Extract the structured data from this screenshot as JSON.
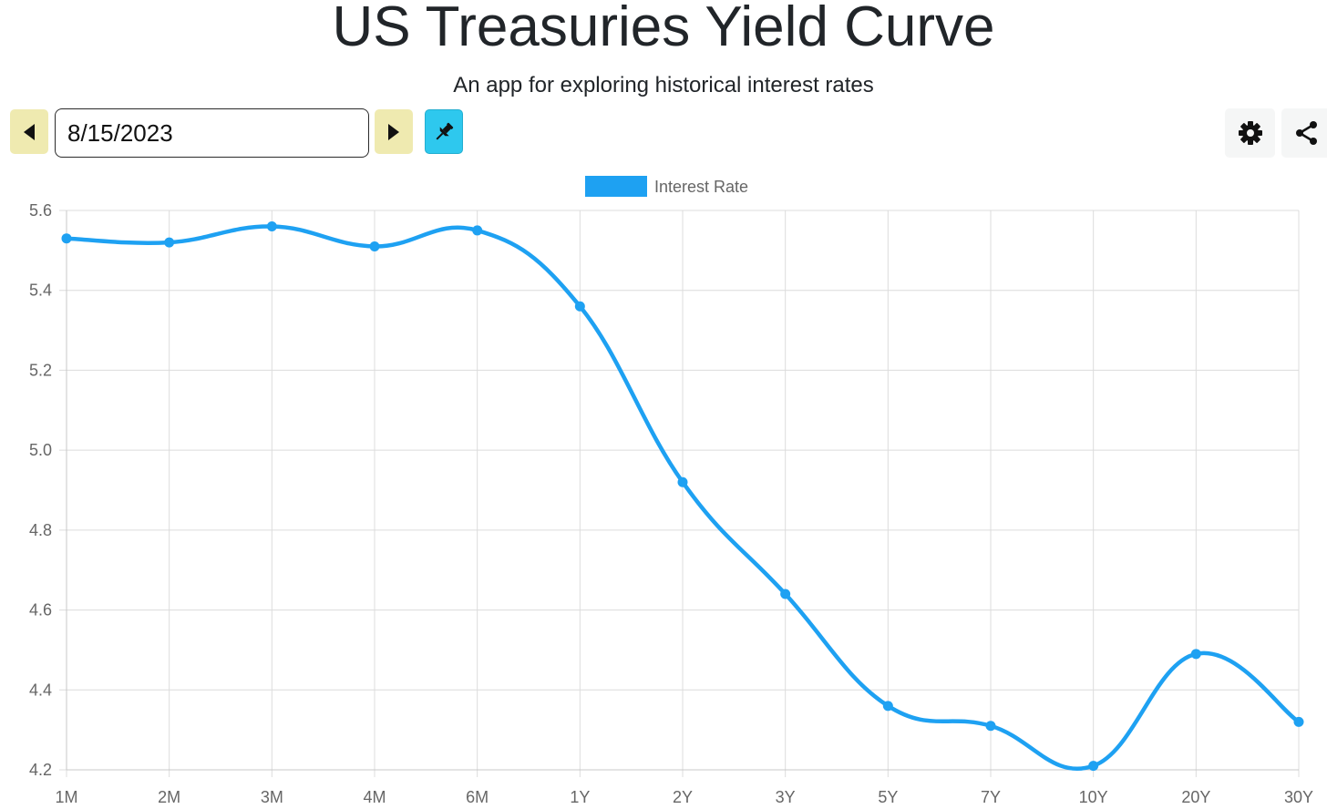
{
  "header": {
    "title": "US Treasuries Yield Curve",
    "subtitle": "An app for exploring historical interest rates"
  },
  "toolbar": {
    "date_value": "8/15/2023",
    "prev_icon": "caret-left-icon",
    "next_icon": "caret-right-icon",
    "pin_icon": "pin-icon",
    "settings_icon": "gear-icon",
    "share_icon": "share-icon",
    "colors": {
      "nav_button": "#efeab0",
      "pin_button": "#2ec8ee",
      "util_button": "#f5f6f6"
    }
  },
  "chart_data": {
    "type": "line",
    "categories": [
      "1M",
      "2M",
      "3M",
      "4M",
      "6M",
      "1Y",
      "2Y",
      "3Y",
      "5Y",
      "7Y",
      "10Y",
      "20Y",
      "30Y"
    ],
    "series": [
      {
        "name": "Interest Rate",
        "color": "#1ea1f2",
        "values": [
          5.53,
          5.52,
          5.56,
          5.51,
          5.55,
          5.36,
          4.92,
          4.64,
          4.36,
          4.31,
          4.21,
          4.49,
          4.32
        ]
      }
    ],
    "ylim": [
      4.2,
      5.6
    ],
    "yticks": [
      "5.6",
      "5.4",
      "5.2",
      "5.0",
      "4.8",
      "4.6",
      "4.4",
      "4.2"
    ],
    "grid": true,
    "legend_position": "top-center",
    "curve": "smooth"
  }
}
